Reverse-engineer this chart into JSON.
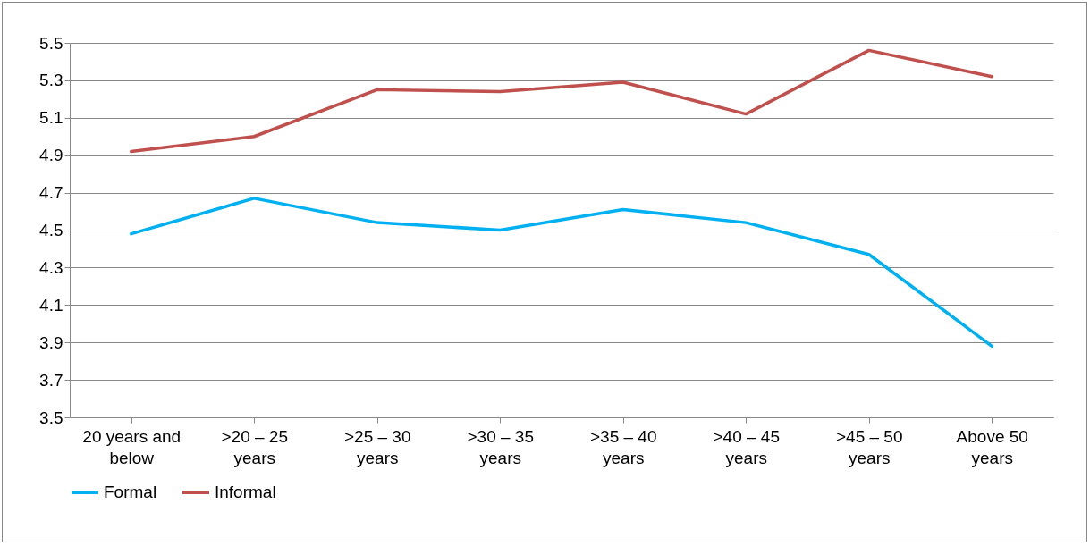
{
  "chart_data": {
    "type": "line",
    "categories": [
      "20 years and below",
      ">20 – 25 years",
      ">25 – 30 years",
      ">30 – 35 years",
      ">35 – 40 years",
      ">40 – 45 years",
      ">45 – 50 years",
      "Above 50 years"
    ],
    "series": [
      {
        "name": "Formal",
        "color": "#00b0f0",
        "values": [
          4.48,
          4.67,
          4.54,
          4.5,
          4.61,
          4.54,
          4.37,
          3.88
        ]
      },
      {
        "name": "Informal",
        "color": "#c0504d",
        "values": [
          4.92,
          5.0,
          5.25,
          5.24,
          5.29,
          5.12,
          5.46,
          5.32
        ]
      }
    ],
    "ylim": [
      3.5,
      5.5
    ],
    "yticks": [
      3.5,
      3.7,
      3.9,
      4.1,
      4.3,
      4.5,
      4.7,
      4.9,
      5.1,
      5.3,
      5.5
    ],
    "grid": "y",
    "legend": "bottom",
    "marker": "none",
    "line_style": "solid"
  }
}
